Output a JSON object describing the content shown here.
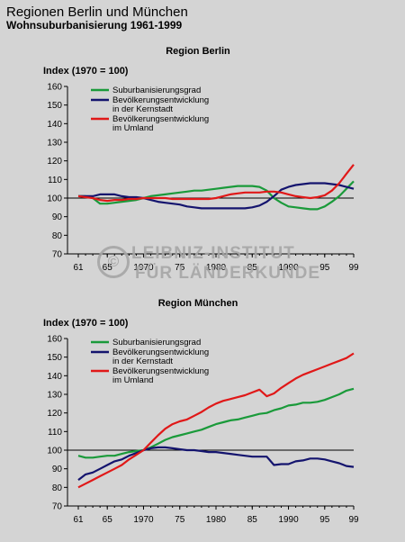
{
  "header": {
    "title": "Regionen Berlin und München",
    "subtitle": "Wohnsuburbanisierung 1961-1999"
  },
  "watermark": {
    "line1": "LEIBNIZ-INSTITUT",
    "line2": "FÜR LÄNDERKUNDE",
    "symbol": "©"
  },
  "colors": {
    "suburbanisierungsgrad": "#1a9a3a",
    "kernstadt": "#14146e",
    "umland": "#e01818",
    "reference_line": "#000000"
  },
  "chart_data": [
    {
      "type": "line",
      "title": "Region Berlin",
      "ylabel": "Index (1970 = 100)",
      "ylim": [
        70,
        160
      ],
      "yticks": [
        "70",
        "80",
        "90",
        "100",
        "110",
        "120",
        "130",
        "140",
        "150",
        "160"
      ],
      "xlim": [
        1961,
        1999
      ],
      "xticks": [
        "61",
        "65",
        "1970",
        "75",
        "1980",
        "85",
        "1990",
        "95",
        "99"
      ],
      "reference_line": 100,
      "grid": false,
      "legend_position": "top-left",
      "x": [
        1961,
        1962,
        1963,
        1964,
        1965,
        1966,
        1967,
        1968,
        1969,
        1970,
        1971,
        1972,
        1973,
        1974,
        1975,
        1976,
        1977,
        1978,
        1979,
        1980,
        1981,
        1982,
        1983,
        1984,
        1985,
        1986,
        1987,
        1988,
        1989,
        1990,
        1991,
        1992,
        1993,
        1994,
        1995,
        1996,
        1997,
        1998,
        1999
      ],
      "series": [
        {
          "name": "Suburbanisierungsgrad",
          "color_key": "suburbanisierungsgrad",
          "values": [
            101,
            101,
            100,
            97,
            97,
            97.5,
            98,
            98.5,
            99,
            100,
            101,
            101.5,
            102,
            102.5,
            103,
            103.5,
            104,
            104,
            104.5,
            105,
            105.5,
            106,
            106.5,
            106.5,
            106.5,
            106,
            104,
            100,
            97.5,
            95.5,
            95,
            94.5,
            94,
            94,
            95.5,
            98,
            101,
            105,
            109
          ]
        },
        {
          "name": "Bevölkerungsentwicklung in der Kernstadt",
          "color_key": "kernstadt",
          "values": [
            101,
            101,
            101,
            102,
            102,
            102,
            101,
            100.5,
            100.5,
            100,
            99,
            98,
            97.5,
            97,
            96.5,
            95.5,
            95,
            94.5,
            94.5,
            94.5,
            94.5,
            94.5,
            94.5,
            94.5,
            95,
            96,
            98,
            101,
            104.5,
            106,
            107,
            107.5,
            108,
            108,
            108,
            107.5,
            107,
            106,
            105
          ]
        },
        {
          "name": "Bevölkerungsentwicklung im Umland",
          "color_key": "umland",
          "values": [
            101,
            100.5,
            100,
            99,
            98.5,
            99,
            99,
            99.5,
            99.5,
            100,
            100,
            100,
            100,
            99.5,
            99.5,
            99.5,
            99.5,
            99.5,
            99.5,
            100,
            101,
            102,
            102.5,
            103,
            103,
            103,
            103.5,
            103.5,
            103,
            102,
            101,
            100.5,
            100,
            100.5,
            101.5,
            104,
            108,
            113,
            118
          ]
        }
      ]
    },
    {
      "type": "line",
      "title": "Region München",
      "ylabel": "Index (1970 = 100)",
      "ylim": [
        70,
        160
      ],
      "yticks": [
        "70",
        "80",
        "90",
        "100",
        "110",
        "120",
        "130",
        "140",
        "150",
        "160"
      ],
      "xlim": [
        1961,
        1999
      ],
      "xticks": [
        "61",
        "65",
        "1970",
        "75",
        "1980",
        "85",
        "1990",
        "95",
        "99"
      ],
      "reference_line": 100,
      "grid": false,
      "legend_position": "top-left",
      "x": [
        1961,
        1962,
        1963,
        1964,
        1965,
        1966,
        1967,
        1968,
        1969,
        1970,
        1971,
        1972,
        1973,
        1974,
        1975,
        1976,
        1977,
        1978,
        1979,
        1980,
        1981,
        1982,
        1983,
        1984,
        1985,
        1986,
        1987,
        1988,
        1989,
        1990,
        1991,
        1992,
        1993,
        1994,
        1995,
        1996,
        1997,
        1998,
        1999
      ],
      "series": [
        {
          "name": "Suburbanisierungsgrad",
          "color_key": "suburbanisierungsgrad",
          "values": [
            97,
            96,
            96,
            96.5,
            97,
            97,
            98,
            99,
            99.5,
            100,
            101.5,
            103.5,
            105.5,
            107,
            108,
            109,
            110,
            111,
            112.5,
            114,
            115,
            116,
            116.5,
            117.5,
            118.5,
            119.5,
            120,
            121.5,
            122.5,
            124,
            124.5,
            125.5,
            125.5,
            126,
            127,
            128.5,
            130,
            132,
            133
          ]
        },
        {
          "name": "Bevölkerungsentwicklung in der Kernstadt",
          "color_key": "kernstadt",
          "values": [
            84,
            87,
            88,
            90,
            92,
            94,
            95,
            97,
            98.5,
            100,
            101,
            101.5,
            101.5,
            101,
            100.5,
            100,
            100,
            99.5,
            99,
            99,
            98.5,
            98,
            97.5,
            97,
            96.5,
            96.5,
            96.5,
            92,
            92.5,
            92.5,
            94,
            94.5,
            95.5,
            95.5,
            95,
            94,
            93,
            91.5,
            91
          ]
        },
        {
          "name": "Bevölkerungsentwicklung im Umland",
          "color_key": "umland",
          "values": [
            80,
            82,
            84,
            86,
            88,
            90,
            92,
            95,
            97.5,
            100,
            104,
            108,
            111.5,
            114,
            115.5,
            116.5,
            118.5,
            120.5,
            123,
            125,
            126.5,
            127.5,
            128.5,
            129.5,
            131,
            132.5,
            129,
            130.5,
            133.5,
            136,
            138.5,
            140.5,
            142,
            143.5,
            145,
            146.5,
            148,
            149.5,
            152
          ]
        }
      ]
    }
  ]
}
